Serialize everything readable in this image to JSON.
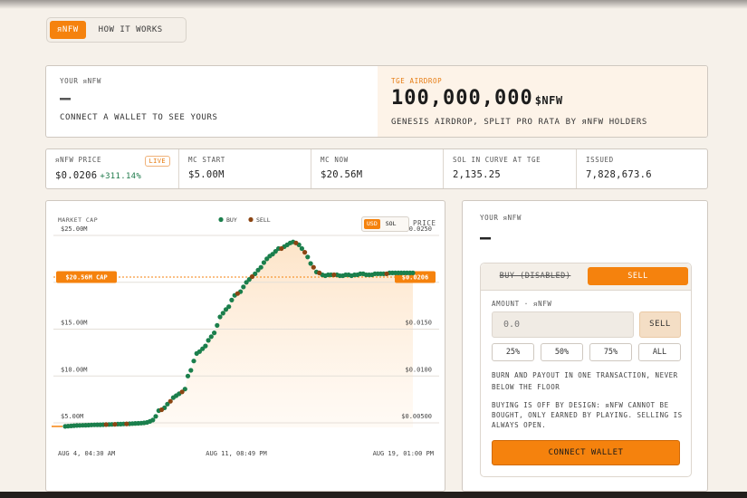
{
  "tabs": {
    "active": "ᴙNFW",
    "inactive": "HOW IT WORKS"
  },
  "hero": {
    "left_label": "YOUR ᴙNFW",
    "left_value": "–",
    "left_sub": "CONNECT A WALLET TO SEE YOURS",
    "right_label": "TGE AIRDROP",
    "right_value": "100,000,000",
    "right_unit": "$NFW",
    "right_sub": "GENESIS AIRDROP, SPLIT PRO RATA BY ᴙNFW HOLDERS"
  },
  "stats": {
    "price_label": "ᴙNFW PRICE",
    "price_value": "$0.0206",
    "price_change": "+311.14%",
    "live_badge": "LIVE",
    "items": [
      {
        "label": "MC START",
        "value": "$5.00M"
      },
      {
        "label": "MC NOW",
        "value": "$20.56M"
      },
      {
        "label": "SOL IN CURVE AT TGE",
        "value": "2,135.25"
      },
      {
        "label": "ISSUED",
        "value": "7,828,673.6"
      }
    ]
  },
  "chart": {
    "y_left_title": "MARKET CAP",
    "y_right_title": "PRICE",
    "legend": [
      "BUY",
      "SELL"
    ],
    "currency_options": [
      "USD",
      "SOL"
    ],
    "currency_selected": "USD",
    "cap_tag": "$20.56M CAP",
    "price_tag": "$0.0206"
  },
  "chart_data": {
    "type": "scatter",
    "title": "",
    "xlabel": "",
    "ylabel": "MARKET CAP",
    "y2label": "PRICE",
    "x_tick_labels": [
      "AUG 4, 04:30 AM",
      "AUG 11, 08:49 PM",
      "AUG 19, 01:00 PM"
    ],
    "y_ticks_left": [
      "$5.00M",
      "$10.00M",
      "$15.00M",
      "$20.00M",
      "$25.00M"
    ],
    "y_ticks_right": [
      "$0.00500",
      "$0.0100",
      "$0.0150",
      "$0.0200",
      "$0.0250"
    ],
    "ylim": [
      4.5,
      25
    ],
    "grid": true,
    "legend_position": "top-center",
    "reference_line": {
      "value": 20.56,
      "label": "$20.56M CAP"
    },
    "colors": {
      "buy": "#1b7f4c",
      "sell": "#8b4513",
      "fill": "#fde4c8",
      "accent": "#f5820d"
    },
    "series": [
      {
        "name": "BUY",
        "x": [
          0,
          1,
          2,
          3,
          4,
          5,
          6,
          7,
          8,
          9,
          10,
          11,
          12,
          13,
          15,
          16,
          18,
          19,
          20,
          22,
          23,
          24,
          25,
          26,
          27,
          28,
          29,
          30,
          31,
          32,
          34,
          35,
          37,
          38,
          39,
          41,
          42,
          43,
          44,
          45,
          46,
          47,
          48,
          49,
          50,
          51,
          52,
          53,
          54,
          55,
          56,
          57,
          58,
          60,
          61,
          62,
          63,
          65,
          66,
          67,
          68,
          69,
          70,
          71,
          72,
          73,
          75,
          76,
          77,
          78,
          80,
          81,
          83,
          84,
          86,
          88,
          89,
          90,
          91,
          93,
          94,
          95,
          96,
          97,
          98,
          99,
          100,
          101,
          102,
          103,
          104,
          105,
          106,
          107,
          108,
          109,
          111,
          112,
          113,
          114,
          115,
          116,
          117,
          118,
          119
        ],
        "values": [
          4.62,
          4.65,
          4.67,
          4.7,
          4.72,
          4.73,
          4.74,
          4.75,
          4.76,
          4.78,
          4.79,
          4.8,
          4.8,
          4.81,
          4.83,
          4.84,
          4.86,
          4.86,
          4.88,
          4.9,
          4.92,
          4.94,
          4.95,
          4.97,
          5.0,
          5.05,
          5.15,
          5.3,
          5.7,
          6.3,
          6.6,
          7.0,
          7.7,
          7.9,
          8.1,
          8.6,
          10.0,
          10.6,
          11.6,
          12.4,
          12.6,
          12.9,
          13.2,
          13.8,
          14.2,
          14.6,
          15.4,
          16.3,
          16.7,
          17.1,
          17.4,
          18.1,
          18.6,
          19.0,
          19.5,
          20.0,
          20.3,
          20.9,
          21.3,
          21.6,
          22.1,
          22.5,
          22.8,
          23.0,
          23.3,
          23.6,
          23.8,
          24.0,
          24.2,
          24.3,
          24.0,
          23.6,
          22.7,
          22.0,
          21.1,
          20.8,
          20.7,
          20.8,
          20.8,
          20.8,
          20.7,
          20.7,
          20.8,
          20.8,
          20.7,
          20.8,
          20.8,
          20.9,
          20.9,
          20.8,
          20.8,
          20.8,
          20.9,
          20.9,
          20.9,
          20.9,
          21.0,
          21.0,
          21.0,
          21.0,
          21.0,
          21.0,
          21.0,
          21.0,
          21.0
        ]
      },
      {
        "name": "SELL",
        "x": [
          14,
          17,
          21,
          33,
          36,
          40,
          59,
          64,
          74,
          79,
          82,
          85,
          87,
          92,
          110
        ],
        "values": [
          4.82,
          4.85,
          4.89,
          6.4,
          7.3,
          8.3,
          18.8,
          20.6,
          23.6,
          24.2,
          23.2,
          21.6,
          21.0,
          20.8,
          20.9
        ]
      }
    ]
  },
  "sell_panel": {
    "label": "YOUR ᴙNFW",
    "value": "–",
    "tab_buy": "BUY (DISABLED)",
    "tab_sell": "SELL",
    "amount_label": "AMOUNT · ᴙNFW",
    "amount_placeholder": "0.0",
    "amount_button": "SELL",
    "percent_buttons": [
      "25%",
      "50%",
      "75%",
      "ALL"
    ],
    "note1": "BURN AND PAYOUT IN ONE TRANSACTION, NEVER BELOW THE FLOOR",
    "note2": "BUYING IS OFF BY DESIGN: ᴙNFW CANNOT BE BOUGHT, ONLY EARNED BY PLAYING. SELLING IS ALWAYS OPEN.",
    "connect_button": "CONNECT WALLET"
  }
}
